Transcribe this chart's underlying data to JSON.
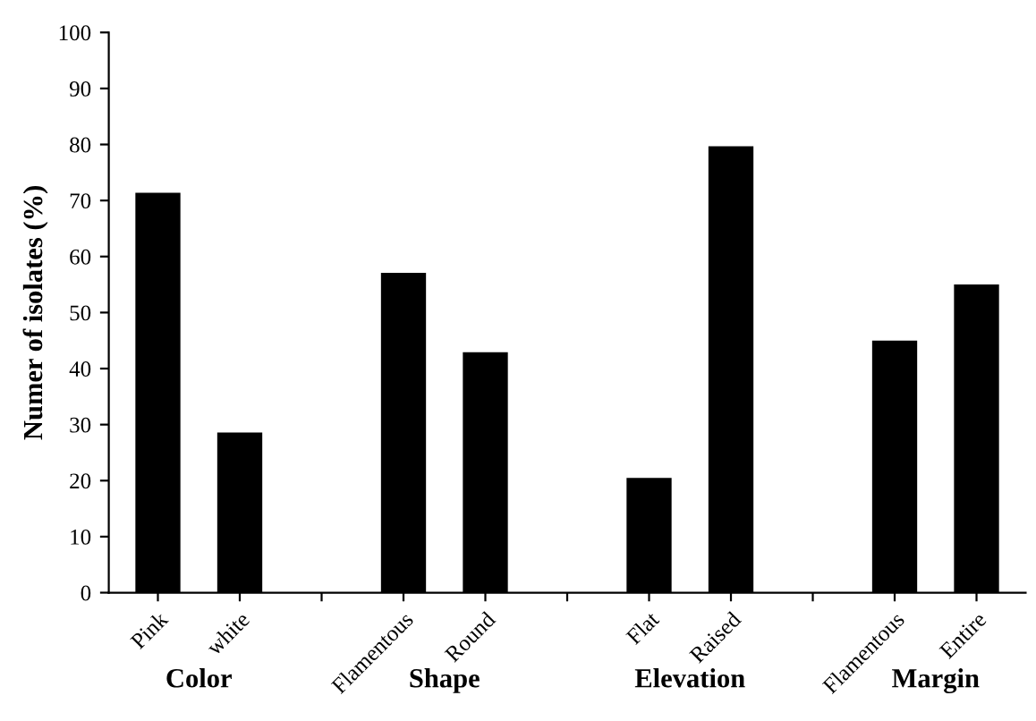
{
  "chart_data": {
    "type": "bar",
    "ylabel": "Numer of isolates (%)",
    "categories": [
      "Pink",
      "white",
      null,
      "Flamentous",
      "Round",
      null,
      "Flat",
      "Raised",
      null,
      "Flamentous",
      "Entire"
    ],
    "values": [
      71.4,
      28.6,
      null,
      57.1,
      42.9,
      null,
      20.5,
      79.7,
      null,
      45,
      55
    ],
    "color": "#000000",
    "ylim": [
      0,
      100
    ],
    "yticks": [
      0,
      10,
      20,
      30,
      40,
      50,
      60,
      70,
      80,
      90,
      100
    ],
    "grid": false,
    "annotations": [
      "Color",
      "Shape",
      "Elevation",
      "Margin"
    ]
  }
}
